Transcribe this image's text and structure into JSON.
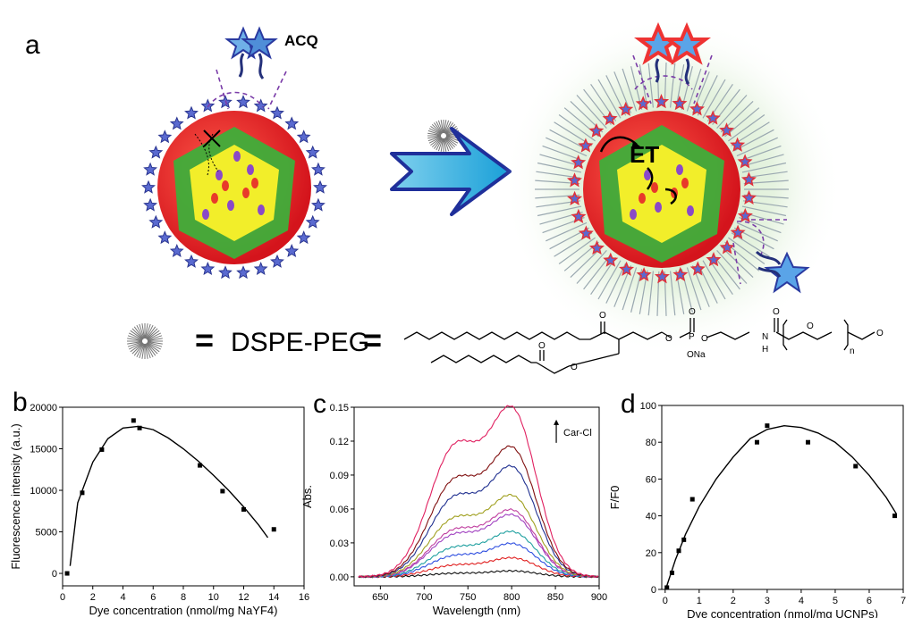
{
  "panel_labels": {
    "a": "a",
    "b": "b",
    "c": "c",
    "d": "d"
  },
  "schematic": {
    "dye_label": "ACQ",
    "energy_transfer_label": "ET",
    "equation_equals": "=",
    "molecule_name": "DSPE-PEG",
    "chem_labels": {
      "na": "ONa",
      "nh": "N",
      "h": "H",
      "sub_n": "n",
      "o": "O",
      "p": "P"
    }
  },
  "colors": {
    "shell_red": "#e8232a",
    "mid_green": "#3fae3a",
    "core_yellow": "#f2ee2a",
    "star_blue": "#3b4fb0",
    "arrow_blue": "#2aa8d8",
    "glow_green": "#cfe8c6"
  },
  "chart_data": [
    {
      "panel": "b",
      "type": "scatter",
      "xlabel": "Dye concentration (nmol/mg NaYF4)",
      "ylabel": "Fluorescence intensity (a.u.)",
      "xlim": [
        0,
        16
      ],
      "ylim": [
        -1500,
        20000
      ],
      "xticks": [
        0,
        2,
        4,
        6,
        8,
        10,
        12,
        14,
        16
      ],
      "yticks": [
        0,
        5000,
        10000,
        15000,
        20000
      ],
      "points": {
        "x": [
          0.3,
          1.3,
          2.6,
          4.7,
          5.1,
          9.1,
          10.6,
          12.0,
          14.0
        ],
        "y": [
          0,
          9700,
          14900,
          18400,
          17500,
          13000,
          9900,
          7700,
          5300
        ]
      },
      "fit": {
        "x": [
          0.5,
          1,
          2,
          3,
          4,
          5,
          6,
          7,
          8,
          9,
          10,
          11,
          12,
          13,
          13.6
        ],
        "y": [
          900,
          8500,
          13400,
          16200,
          17500,
          17700,
          17300,
          16300,
          15000,
          13500,
          11800,
          10000,
          8000,
          5800,
          4300
        ]
      }
    },
    {
      "panel": "c",
      "type": "line",
      "xlabel": "Wavelength (nm)",
      "ylabel": "Abs.",
      "xlim": [
        620,
        900
      ],
      "ylim": [
        -0.008,
        0.15
      ],
      "xticks": [
        650,
        700,
        750,
        800,
        850,
        900
      ],
      "yticks": [
        0.0,
        0.03,
        0.06,
        0.09,
        0.12,
        0.15
      ],
      "ytick_labels": [
        "0.00",
        "0.03",
        "0.06",
        "0.09",
        "0.12",
        "0.15"
      ],
      "annotation": "Car-Cl",
      "series": [
        {
          "color": "#111111",
          "peak": 0.005,
          "shoulder": 0.003
        },
        {
          "color": "#e02020",
          "peak": 0.016,
          "shoulder": 0.01
        },
        {
          "color": "#3050e0",
          "peak": 0.028,
          "shoulder": 0.018
        },
        {
          "color": "#20a0a0",
          "peak": 0.038,
          "shoulder": 0.025
        },
        {
          "color": "#a040c0",
          "peak": 0.052,
          "shoulder": 0.036
        },
        {
          "color": "#c040a0",
          "peak": 0.056,
          "shoulder": 0.04
        },
        {
          "color": "#a0a020",
          "peak": 0.068,
          "shoulder": 0.05
        },
        {
          "color": "#203090",
          "peak": 0.092,
          "shoulder": 0.068
        },
        {
          "color": "#801010",
          "peak": 0.108,
          "shoulder": 0.083
        },
        {
          "color": "#e02060",
          "peak": 0.141,
          "shoulder": 0.112
        }
      ]
    },
    {
      "panel": "d",
      "type": "scatter",
      "xlabel": "Dye concentration (nmol/mg UCNPs)",
      "ylabel": "F/F0",
      "xlim": [
        -0.1,
        7
      ],
      "ylim": [
        0,
        100
      ],
      "xticks": [
        0,
        1,
        2,
        3,
        4,
        5,
        6,
        7
      ],
      "yticks": [
        0,
        20,
        40,
        60,
        80,
        100
      ],
      "points": {
        "x": [
          0.05,
          0.2,
          0.4,
          0.55,
          0.8,
          2.7,
          3.0,
          4.2,
          5.6,
          6.75
        ],
        "y": [
          1,
          9,
          21,
          27,
          49,
          80,
          89,
          80,
          67,
          40
        ]
      },
      "fit": {
        "x": [
          0.05,
          0.3,
          0.6,
          1.0,
          1.5,
          2.0,
          2.5,
          3.0,
          3.5,
          4.0,
          4.5,
          5.0,
          5.5,
          6.0,
          6.5,
          6.8
        ],
        "y": [
          2,
          16,
          30,
          45,
          60,
          72,
          82,
          87,
          89,
          88,
          85,
          80,
          72,
          62,
          50,
          41
        ]
      }
    }
  ]
}
